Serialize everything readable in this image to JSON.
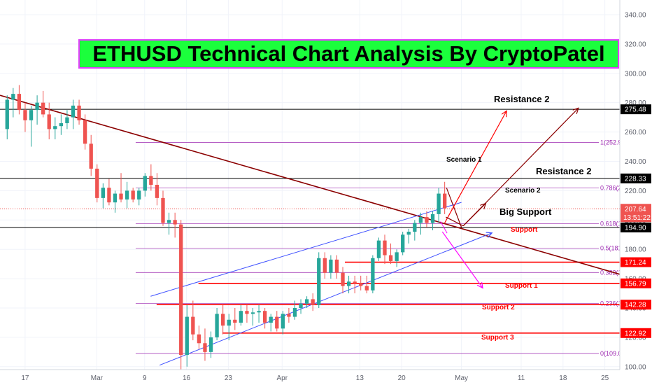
{
  "title": "ETHUSD Technical Chart Analysis By CryptoPatel",
  "colors": {
    "up": "#26a69a",
    "down": "#ef5350",
    "grid": "#f0f3fa",
    "trend": "#8b0000",
    "channel": "#3f51ff",
    "fib": "#9c27b0",
    "support": "#ff0000",
    "black_level": "#000000",
    "title_bg": "#1bff3c",
    "title_border": "#e040fb"
  },
  "chart_data": {
    "type": "candlestick",
    "title": "ETHUSD Technical Chart Analysis By CryptoPatel",
    "y_axis_ticks": [
      100,
      120,
      140,
      160,
      180,
      200,
      220,
      240,
      260,
      280,
      300,
      320,
      340
    ],
    "y_axis_tick_labels": [
      "100.00",
      "120.00",
      "140.00",
      "160.00",
      "180.00",
      "200.00",
      "220.00",
      "240.00",
      "260.00",
      "280.00",
      "300.00",
      "320.00",
      "340.00"
    ],
    "ylim": [
      98,
      350
    ],
    "x_axis_labels": [
      {
        "label": "17",
        "day": 17
      },
      {
        "label": "Mar",
        "day": 29
      },
      {
        "label": "9",
        "day": 37
      },
      {
        "label": "16",
        "day": 44
      },
      {
        "label": "23",
        "day": 51
      },
      {
        "label": "Apr",
        "day": 60
      },
      {
        "label": "13",
        "day": 73
      },
      {
        "label": "20",
        "day": 80
      },
      {
        "label": "May",
        "day": 90
      },
      {
        "label": "11",
        "day": 100
      },
      {
        "label": "18",
        "day": 107
      },
      {
        "label": "25",
        "day": 114
      }
    ],
    "xlim": [
      12.8,
      116.5
    ],
    "candles": [
      [
        262,
        285,
        255,
        282
      ],
      [
        282,
        290,
        270,
        286
      ],
      [
        286,
        292,
        272,
        275
      ],
      [
        275,
        280,
        260,
        268
      ],
      [
        268,
        278,
        250,
        275
      ],
      [
        275,
        285,
        265,
        280
      ],
      [
        280,
        288,
        270,
        272
      ],
      [
        272,
        280,
        255,
        262
      ],
      [
        262,
        270,
        255,
        264
      ],
      [
        264,
        272,
        258,
        266
      ],
      [
        266,
        275,
        262,
        270
      ],
      [
        270,
        282,
        262,
        278
      ],
      [
        278,
        282,
        265,
        268
      ],
      [
        268,
        272,
        248,
        252
      ],
      [
        252,
        258,
        230,
        235
      ],
      [
        235,
        238,
        212,
        215
      ],
      [
        215,
        225,
        208,
        222
      ],
      [
        222,
        228,
        210,
        212
      ],
      [
        212,
        220,
        205,
        218
      ],
      [
        218,
        232,
        212,
        214
      ],
      [
        214,
        226,
        208,
        220
      ],
      [
        220,
        222,
        212,
        214
      ],
      [
        214,
        222,
        210,
        220
      ],
      [
        220,
        232,
        216,
        230
      ],
      [
        230,
        238,
        220,
        224
      ],
      [
        224,
        232,
        210,
        215
      ],
      [
        215,
        220,
        196,
        198
      ],
      [
        198,
        205,
        190,
        200
      ],
      [
        200,
        205,
        188,
        197
      ],
      [
        197,
        200,
        96,
        108
      ],
      [
        108,
        142,
        100,
        134
      ],
      [
        134,
        145,
        118,
        122
      ],
      [
        122,
        128,
        112,
        116
      ],
      [
        116,
        126,
        104,
        110
      ],
      [
        110,
        124,
        106,
        120
      ],
      [
        120,
        140,
        118,
        136
      ],
      [
        136,
        142,
        122,
        128
      ],
      [
        128,
        136,
        118,
        132
      ],
      [
        132,
        140,
        125,
        130
      ],
      [
        130,
        142,
        128,
        138
      ],
      [
        138,
        142,
        130,
        136
      ],
      [
        136,
        140,
        128,
        137
      ],
      [
        137,
        142,
        130,
        138
      ],
      [
        138,
        140,
        126,
        130
      ],
      [
        130,
        136,
        124,
        134
      ],
      [
        134,
        138,
        124,
        126
      ],
      [
        126,
        138,
        122,
        136
      ],
      [
        136,
        140,
        130,
        134
      ],
      [
        134,
        145,
        132,
        140
      ],
      [
        140,
        146,
        136,
        143
      ],
      [
        143,
        148,
        140,
        146
      ],
      [
        146,
        150,
        138,
        142
      ],
      [
        142,
        178,
        140,
        174
      ],
      [
        174,
        178,
        160,
        164
      ],
      [
        164,
        176,
        160,
        173
      ],
      [
        173,
        176,
        160,
        164
      ],
      [
        164,
        168,
        150,
        155
      ],
      [
        155,
        162,
        150,
        158
      ],
      [
        158,
        162,
        150,
        157
      ],
      [
        157,
        162,
        152,
        155
      ],
      [
        155,
        162,
        150,
        152
      ],
      [
        152,
        176,
        150,
        174
      ],
      [
        174,
        188,
        172,
        186
      ],
      [
        186,
        190,
        170,
        176
      ],
      [
        176,
        184,
        170,
        172
      ],
      [
        172,
        180,
        168,
        178
      ],
      [
        178,
        192,
        176,
        190
      ],
      [
        190,
        194,
        184,
        192
      ],
      [
        192,
        200,
        186,
        198
      ],
      [
        198,
        205,
        190,
        202
      ],
      [
        202,
        206,
        195,
        198
      ],
      [
        198,
        206,
        193,
        204
      ],
      [
        204,
        222,
        198,
        218
      ],
      [
        218,
        226,
        204,
        208
      ]
    ],
    "horizontal_levels": [
      {
        "value": 275.48,
        "label": "275.48",
        "color": "#000000"
      },
      {
        "value": 228.33,
        "label": "228.33",
        "color": "#000000"
      },
      {
        "value": 194.9,
        "label": "194.90",
        "color": "#000000"
      },
      {
        "value": 171.24,
        "label": "171.24",
        "color": "#ff0000"
      },
      {
        "value": 156.79,
        "label": "156.79",
        "color": "#ff0000"
      },
      {
        "value": 142.28,
        "label": "142.28",
        "color": "#ff0000"
      },
      {
        "value": 122.92,
        "label": "122.92",
        "color": "#ff0000"
      }
    ],
    "current_price": {
      "value": 207.64,
      "label": "207.64",
      "countdown": "13:51:22"
    },
    "fib_levels": [
      {
        "ratio": "1(252.9",
        "value": 252.9
      },
      {
        "ratio": "0.786(2",
        "value": 221.8
      },
      {
        "ratio": "0.618(1",
        "value": 197.5
      },
      {
        "ratio": "0.5(181",
        "value": 180.7
      },
      {
        "ratio": "0.382(1",
        "value": 164.2
      },
      {
        "ratio": "0.236(1",
        "value": 143.1
      },
      {
        "ratio": "0(109.0",
        "value": 109.0
      }
    ],
    "annotations": {
      "resistance_2_top": "Resistance 2",
      "resistance_2": "Resistance 2",
      "scenario_1": "Scenario 1",
      "scenario_2": "Scenario 2",
      "big_support": "Big Support",
      "support": "Support",
      "support_1": "Support 1",
      "support_2": "Support 2",
      "support_3": "Support 3"
    }
  }
}
